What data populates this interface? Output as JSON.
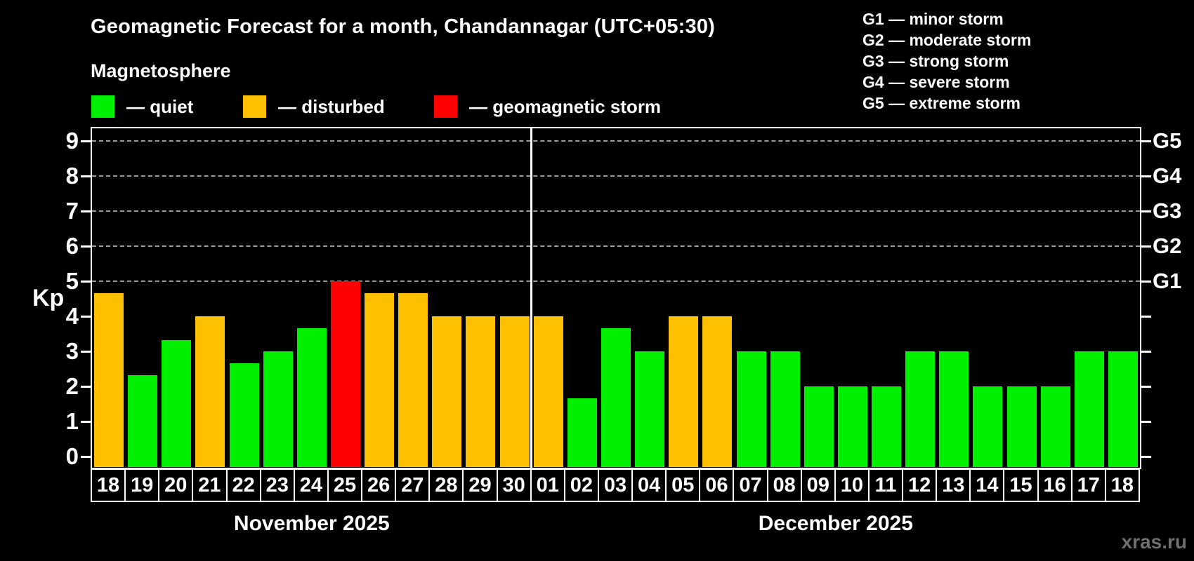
{
  "title": "Geomagnetic Forecast for a month, Chandannagar (UTC+05:30)",
  "subtitle": "Magnetosphere",
  "watermark": "xras.ru",
  "colors": {
    "quiet": "#00f000",
    "disturbed": "#ffc000",
    "storm": "#ff0000",
    "background": "#000000",
    "grid": "#9a9a9a",
    "frame": "#ffffff",
    "watermark": "#6f6f6f"
  },
  "legend": {
    "items": [
      {
        "status": "quiet",
        "label": "— quiet"
      },
      {
        "status": "disturbed",
        "label": "— disturbed"
      },
      {
        "status": "storm",
        "label": "— geomagnetic storm"
      }
    ]
  },
  "storm_scale": [
    "G1 — minor storm",
    "G2 — moderate storm",
    "G3 — strong storm",
    "G4 — severe storm",
    "G5 — extreme storm"
  ],
  "chart_data": {
    "type": "bar",
    "ylabel": "Kp",
    "ylim": [
      0,
      9
    ],
    "yticks": [
      0,
      1,
      2,
      3,
      4,
      5,
      6,
      7,
      8,
      9
    ],
    "gridlines_at": [
      5,
      6,
      7,
      8,
      9
    ],
    "grid": "horizontal dashed lines at Kp 5-9 only",
    "legend_position": "top-left (colors), top-right (G scale)",
    "right_axis": [
      {
        "label": "G1",
        "kp": 5
      },
      {
        "label": "G2",
        "kp": 6
      },
      {
        "label": "G3",
        "kp": 7
      },
      {
        "label": "G4",
        "kp": 8
      },
      {
        "label": "G5",
        "kp": 9
      }
    ],
    "months": [
      {
        "label": "November 2025",
        "days": [
          {
            "day": "18",
            "kp": 4.67,
            "status": "disturbed"
          },
          {
            "day": "19",
            "kp": 2.33,
            "status": "quiet"
          },
          {
            "day": "20",
            "kp": 3.33,
            "status": "quiet"
          },
          {
            "day": "21",
            "kp": 4,
            "status": "disturbed"
          },
          {
            "day": "22",
            "kp": 2.67,
            "status": "quiet"
          },
          {
            "day": "23",
            "kp": 3,
            "status": "quiet"
          },
          {
            "day": "24",
            "kp": 3.67,
            "status": "quiet"
          },
          {
            "day": "25",
            "kp": 5,
            "status": "storm"
          },
          {
            "day": "26",
            "kp": 4.67,
            "status": "disturbed"
          },
          {
            "day": "27",
            "kp": 4.67,
            "status": "disturbed"
          },
          {
            "day": "28",
            "kp": 4,
            "status": "disturbed"
          },
          {
            "day": "29",
            "kp": 4,
            "status": "disturbed"
          },
          {
            "day": "30",
            "kp": 4,
            "status": "disturbed"
          }
        ]
      },
      {
        "label": "December 2025",
        "days": [
          {
            "day": "01",
            "kp": 4,
            "status": "disturbed"
          },
          {
            "day": "02",
            "kp": 1.67,
            "status": "quiet"
          },
          {
            "day": "03",
            "kp": 3.67,
            "status": "quiet"
          },
          {
            "day": "04",
            "kp": 3,
            "status": "quiet"
          },
          {
            "day": "05",
            "kp": 4,
            "status": "disturbed"
          },
          {
            "day": "06",
            "kp": 4,
            "status": "disturbed"
          },
          {
            "day": "07",
            "kp": 3,
            "status": "quiet"
          },
          {
            "day": "08",
            "kp": 3,
            "status": "quiet"
          },
          {
            "day": "09",
            "kp": 2,
            "status": "quiet"
          },
          {
            "day": "10",
            "kp": 2,
            "status": "quiet"
          },
          {
            "day": "11",
            "kp": 2,
            "status": "quiet"
          },
          {
            "day": "12",
            "kp": 3,
            "status": "quiet"
          },
          {
            "day": "13",
            "kp": 3,
            "status": "quiet"
          },
          {
            "day": "14",
            "kp": 2,
            "status": "quiet"
          },
          {
            "day": "15",
            "kp": 2,
            "status": "quiet"
          },
          {
            "day": "16",
            "kp": 2,
            "status": "quiet"
          },
          {
            "day": "17",
            "kp": 3,
            "status": "quiet"
          },
          {
            "day": "18",
            "kp": 3,
            "status": "quiet"
          }
        ]
      }
    ]
  }
}
